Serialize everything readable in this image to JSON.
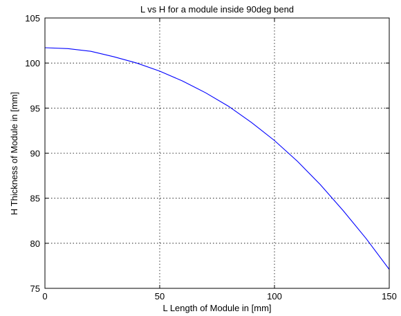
{
  "chart_data": {
    "type": "line",
    "title": "L vs H for a module inside 90deg bend",
    "xlabel": "L Length of Module in [mm]",
    "ylabel": "H Thickness of Module in [mm]",
    "xlim": [
      0,
      150
    ],
    "ylim": [
      75,
      105
    ],
    "xticks": [
      0,
      50,
      100,
      150
    ],
    "yticks": [
      75,
      80,
      85,
      90,
      95,
      100,
      105
    ],
    "grid": true,
    "line_color": "#0000ff",
    "series": [
      {
        "x": [
          0,
          10,
          20,
          30,
          40,
          50,
          60,
          70,
          80,
          90,
          100,
          110,
          120,
          130,
          140,
          150
        ],
        "values": [
          101.7,
          101.6,
          101.3,
          100.7,
          100.0,
          99.1,
          98.0,
          96.7,
          95.2,
          93.4,
          91.4,
          89.1,
          86.5,
          83.6,
          80.5,
          77.1
        ]
      }
    ]
  }
}
